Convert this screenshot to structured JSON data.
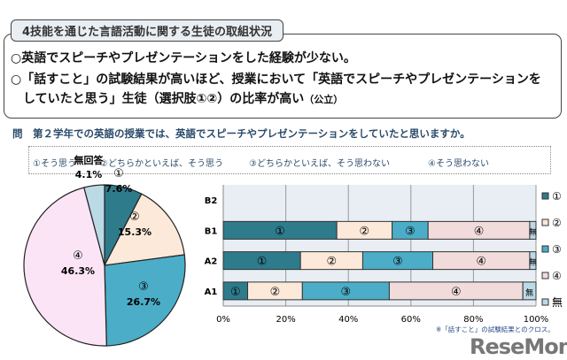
{
  "header": {
    "title": "4技能を通じた言語活動に関する生徒の取組状況",
    "finding1": "○英語でスピーチやプレゼンテーションをした経験が少ない。",
    "finding2a": "○「話すこと」の試験結果が高いほど、授業において「英語でスピーチやプレゼンテーションを",
    "finding2b": "していたと思う」生徒（選択肢①②）の比率が高い",
    "finding2c": "（公立）"
  },
  "question": "問　第２学年での英語の授業では、英語でスピーチやプレゼンテーションをしていたと思いますか。",
  "options": [
    "①そう思う",
    "②どちらかといえば、そう思う",
    "③どちらかといえば、そう思わない",
    "④そう思わない"
  ],
  "note": "※「話すこと」の試験結果とのクロス。",
  "logo": "ReseMom",
  "chart_data": [
    {
      "type": "pie",
      "categories": [
        "①",
        "②",
        "③",
        "④",
        "無回答"
      ],
      "values": [
        7.6,
        15.3,
        26.7,
        46.3,
        4.1
      ],
      "labels": [
        "7.6%",
        "15.3%",
        "26.7%",
        "46.3%",
        "4.1%"
      ],
      "colors": [
        "#2e7b8c",
        "#fde9d9",
        "#4badc7",
        "#fbe4f6",
        "#bcd9e6"
      ]
    },
    {
      "type": "bar",
      "orientation": "horizontal",
      "stacked": true,
      "categories": [
        "B2",
        "B1",
        "A2",
        "A1"
      ],
      "series": [
        {
          "name": "①",
          "values": [
            null,
            36.3,
            24.7,
            7.8
          ],
          "color": "#2e7b8c"
        },
        {
          "name": "②",
          "values": [
            null,
            17.7,
            19.9,
            17.5
          ],
          "color": "#fde9d9"
        },
        {
          "name": "③",
          "values": [
            null,
            11.5,
            22.4,
            27.8
          ],
          "color": "#4badc7"
        },
        {
          "name": "④",
          "values": [
            null,
            32.5,
            31.0,
            42.7
          ],
          "color": "#f2dcdb"
        },
        {
          "name": "無",
          "values": [
            null,
            2.0,
            2.0,
            4.2
          ],
          "color": "#bcd9e6"
        }
      ],
      "xlim": [
        0,
        100
      ],
      "xticks": [
        "0%",
        "20%",
        "40%",
        "60%",
        "80%",
        "100%"
      ],
      "grid": true,
      "legend": "right",
      "plot_bg": "#e8eef3"
    }
  ]
}
